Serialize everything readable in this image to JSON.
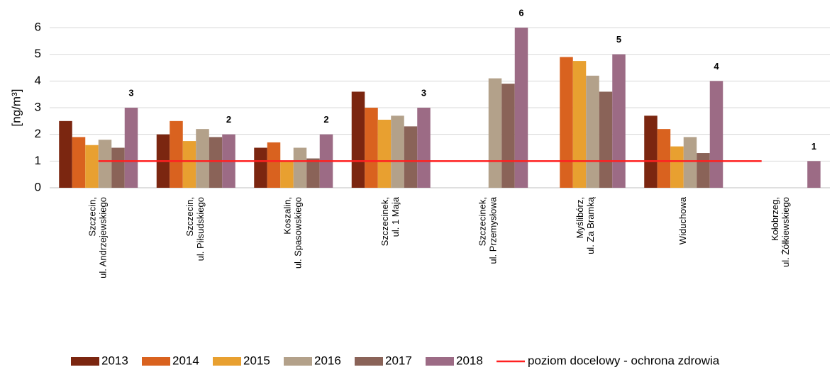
{
  "chart_data": {
    "type": "bar",
    "y_label": "[ng/m³]",
    "categories": [
      [
        "Szczecin,",
        "ul. Andrzejewskiego"
      ],
      [
        "Szczecin,",
        "ul. Piłsudskiego"
      ],
      [
        "Koszalin,",
        "ul. Spasowskiego"
      ],
      [
        "Szczecinek,",
        "ul. 1 Maja"
      ],
      [
        "Szczecinek,",
        "ul. Przemysłowa"
      ],
      [
        "Myślibórz,",
        "ul. Za Bramką"
      ],
      [
        "Widuchowa"
      ],
      [
        "Kołobrzeg,",
        "ul. Żółkiewskiego"
      ]
    ],
    "series": [
      {
        "name": "2013",
        "color": "#7b2610",
        "values": [
          2.5,
          2.0,
          1.5,
          3.6,
          null,
          null,
          2.7,
          null
        ]
      },
      {
        "name": "2014",
        "color": "#d9621f",
        "values": [
          1.9,
          2.5,
          1.7,
          3.0,
          null,
          4.9,
          2.2,
          null
        ]
      },
      {
        "name": "2015",
        "color": "#e8a030",
        "values": [
          1.6,
          1.75,
          1.0,
          2.55,
          null,
          4.75,
          1.55,
          null
        ]
      },
      {
        "name": "2016",
        "color": "#b3a18a",
        "values": [
          1.8,
          2.2,
          1.5,
          2.7,
          4.1,
          4.2,
          1.9,
          null
        ]
      },
      {
        "name": "2017",
        "color": "#8a6358",
        "values": [
          1.5,
          1.9,
          1.1,
          2.3,
          3.9,
          3.6,
          1.3,
          null
        ]
      },
      {
        "name": "2018",
        "color": "#9c6b85",
        "values": [
          3,
          2,
          2,
          3,
          6,
          5,
          4,
          1
        ],
        "data_labels": true
      }
    ],
    "reference_line": {
      "name": "poziom docelowy - ochrona zdrowia",
      "value": 1,
      "color": "#ff2020"
    },
    "ylim": [
      0,
      6
    ],
    "yticks": [
      0,
      1,
      2,
      3,
      4,
      5,
      6
    ],
    "grid": true
  }
}
